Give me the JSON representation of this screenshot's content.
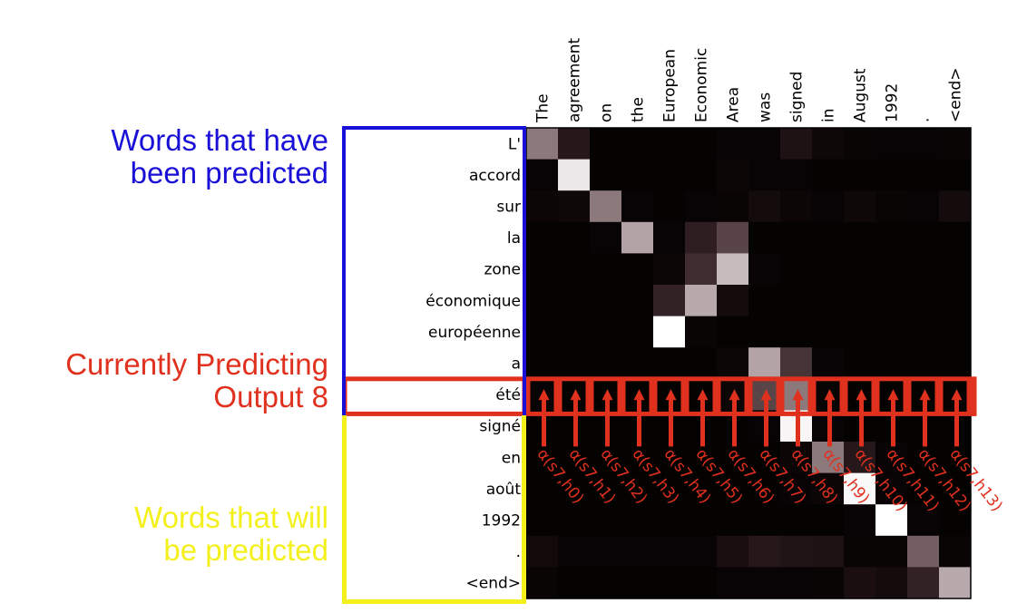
{
  "annotations": {
    "predicted_line1": "Words that have",
    "predicted_line2": "been predicted",
    "current_line1": "Currently Predicting",
    "current_line2": "Output 8",
    "future_line1": "Words that will",
    "future_line2": "be predicted"
  },
  "chart_data": {
    "type": "heatmap",
    "x": [
      "The",
      "agreement",
      "on",
      "the",
      "European",
      "Economic",
      "Area",
      "was",
      "signed",
      "in",
      "August",
      "1992",
      ".",
      "<end>"
    ],
    "y": [
      "L'",
      "accord",
      "sur",
      "la",
      "zone",
      "économique",
      "européenne",
      "a",
      "été",
      "signé",
      "en",
      "août",
      "1992",
      ".",
      "<end>"
    ],
    "values": [
      [
        0.55,
        0.15,
        0.02,
        0.02,
        0.02,
        0.02,
        0.03,
        0.03,
        0.12,
        0.06,
        0.04,
        0.03,
        0.03,
        0.04
      ],
      [
        0.03,
        0.92,
        0.02,
        0.02,
        0.02,
        0.02,
        0.05,
        0.03,
        0.03,
        0.02,
        0.02,
        0.02,
        0.02,
        0.02
      ],
      [
        0.05,
        0.06,
        0.55,
        0.03,
        0.02,
        0.03,
        0.04,
        0.08,
        0.05,
        0.03,
        0.06,
        0.04,
        0.03,
        0.08
      ],
      [
        0.02,
        0.02,
        0.03,
        0.7,
        0.03,
        0.18,
        0.35,
        0.02,
        0.02,
        0.02,
        0.02,
        0.02,
        0.02,
        0.02
      ],
      [
        0.02,
        0.02,
        0.02,
        0.02,
        0.05,
        0.25,
        0.78,
        0.03,
        0.02,
        0.02,
        0.02,
        0.02,
        0.02,
        0.02
      ],
      [
        0.02,
        0.02,
        0.02,
        0.02,
        0.2,
        0.72,
        0.08,
        0.02,
        0.02,
        0.02,
        0.02,
        0.02,
        0.02,
        0.02
      ],
      [
        0.02,
        0.02,
        0.02,
        0.02,
        1.0,
        0.04,
        0.02,
        0.02,
        0.02,
        0.02,
        0.02,
        0.02,
        0.02,
        0.02
      ],
      [
        0.02,
        0.02,
        0.02,
        0.02,
        0.02,
        0.02,
        0.05,
        0.7,
        0.28,
        0.03,
        0.02,
        0.02,
        0.02,
        0.02
      ],
      [
        0.03,
        0.02,
        0.02,
        0.02,
        0.02,
        0.02,
        0.05,
        0.35,
        0.55,
        0.04,
        0.02,
        0.02,
        0.02,
        0.02
      ],
      [
        0.02,
        0.02,
        0.02,
        0.02,
        0.02,
        0.02,
        0.02,
        0.03,
        0.97,
        0.03,
        0.02,
        0.02,
        0.02,
        0.02
      ],
      [
        0.02,
        0.02,
        0.02,
        0.02,
        0.02,
        0.02,
        0.02,
        0.02,
        0.05,
        0.55,
        0.15,
        0.03,
        0.02,
        0.02
      ],
      [
        0.02,
        0.02,
        0.02,
        0.02,
        0.02,
        0.02,
        0.02,
        0.02,
        0.03,
        0.05,
        0.98,
        0.03,
        0.02,
        0.02
      ],
      [
        0.02,
        0.02,
        0.02,
        0.02,
        0.02,
        0.02,
        0.02,
        0.02,
        0.02,
        0.02,
        0.03,
        1.0,
        0.03,
        0.02
      ],
      [
        0.07,
        0.03,
        0.03,
        0.03,
        0.03,
        0.03,
        0.1,
        0.15,
        0.13,
        0.12,
        0.04,
        0.04,
        0.45,
        0.04
      ],
      [
        0.04,
        0.02,
        0.02,
        0.02,
        0.02,
        0.02,
        0.03,
        0.03,
        0.03,
        0.04,
        0.1,
        0.08,
        0.2,
        0.72
      ]
    ],
    "current_row": 8,
    "current_row_labels": [
      "α(s7,h0)",
      "α(s7,h1)",
      "α(s7,h2)",
      "α(s7,h3)",
      "α(s7,h4)",
      "α(s7,h5)",
      "α(s7,h6)",
      "α(s7,h7)",
      "α(s7,h8)",
      "α(s7,h9)",
      "α(s7,h10)",
      "α(s7,h11)",
      "α(s7,h12)",
      "α(s7,h13)"
    ],
    "colors": {
      "predicted": "#1a0fd6",
      "current": "#e0301e",
      "future": "#f3f01c"
    }
  }
}
